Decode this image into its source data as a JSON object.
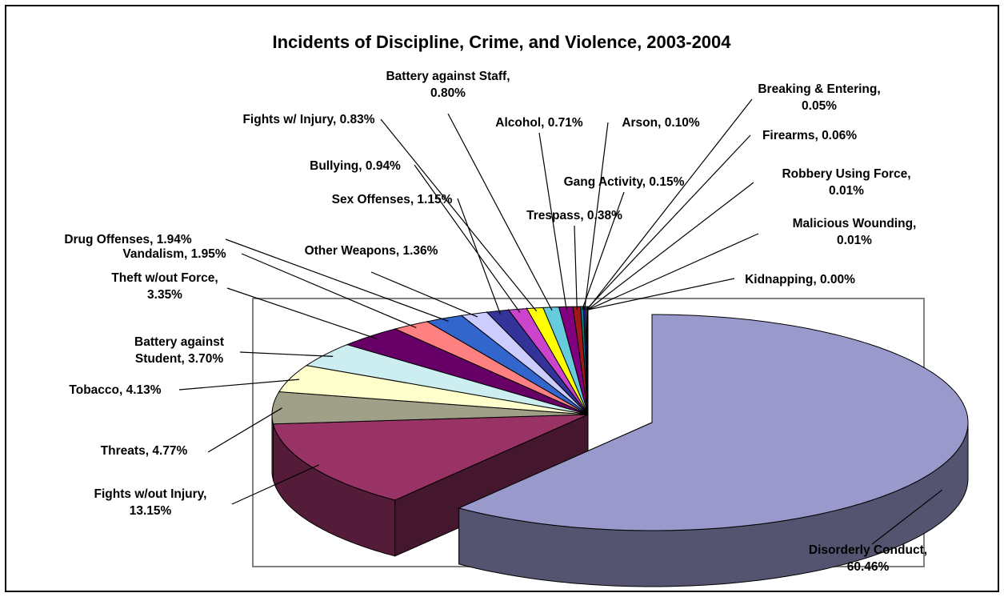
{
  "chart_data": {
    "type": "pie",
    "title": "Incidents of Discipline, Crime, and Violence, 2003-2004",
    "three_d": true,
    "exploded_slice": "Disorderly Conduct",
    "slices": [
      {
        "name": "Disorderly Conduct",
        "line1": "Disorderly Conduct,",
        "line2": "60.46%",
        "value": 60.46,
        "color": "#9999CC"
      },
      {
        "name": "Fights w/out Injury",
        "line1": "Fights w/out Injury,",
        "line2": "13.15%",
        "value": 13.15,
        "color": "#993366"
      },
      {
        "name": "Threats",
        "line1": "Threats, 4.77%",
        "line2": "",
        "value": 4.77,
        "color": "#A0A088"
      },
      {
        "name": "Tobacco",
        "line1": "Tobacco, 4.13%",
        "line2": "",
        "value": 4.13,
        "color": "#FFFFCC"
      },
      {
        "name": "Battery against Student",
        "line1": "Battery against",
        "line2": "Student, 3.70%",
        "value": 3.7,
        "color": "#CCEEF0"
      },
      {
        "name": "Theft w/out Force",
        "line1": "Theft w/out Force,",
        "line2": "3.35%",
        "value": 3.35,
        "color": "#660066"
      },
      {
        "name": "Vandalism",
        "line1": "Vandalism, 1.95%",
        "line2": "",
        "value": 1.95,
        "color": "#FF8080"
      },
      {
        "name": "Drug Offenses",
        "line1": "Drug Offenses, 1.94%",
        "line2": "",
        "value": 1.94,
        "color": "#3366CC"
      },
      {
        "name": "Other Weapons",
        "line1": "Other Weapons, 1.36%",
        "line2": "",
        "value": 1.36,
        "color": "#CCCCFF"
      },
      {
        "name": "Sex Offenses",
        "line1": "Sex Offenses, 1.15%",
        "line2": "",
        "value": 1.15,
        "color": "#333399"
      },
      {
        "name": "Bullying",
        "line1": "Bullying, 0.94%",
        "line2": "",
        "value": 0.94,
        "color": "#CC44CC"
      },
      {
        "name": "Fights w/ Injury",
        "line1": "Fights w/ Injury, 0.83%",
        "line2": "",
        "value": 0.83,
        "color": "#FFFF00"
      },
      {
        "name": "Battery against Staff",
        "line1": "Battery against Staff,",
        "line2": "0.80%",
        "value": 0.8,
        "color": "#66CCDD"
      },
      {
        "name": "Alcohol",
        "line1": "Alcohol, 0.71%",
        "line2": "",
        "value": 0.71,
        "color": "#800080"
      },
      {
        "name": "Trespass",
        "line1": "Trespass, 0.38%",
        "line2": "",
        "value": 0.38,
        "color": "#A01818"
      },
      {
        "name": "Gang Activity",
        "line1": "Gang Activity, 0.15%",
        "line2": "",
        "value": 0.15,
        "color": "#008080"
      },
      {
        "name": "Arson",
        "line1": "Arson, 0.10%",
        "line2": "",
        "value": 0.1,
        "color": "#2020C0"
      },
      {
        "name": "Firearms",
        "line1": "Firearms, 0.06%",
        "line2": "",
        "value": 0.06,
        "color": "#CCCCFF"
      },
      {
        "name": "Breaking & Entering",
        "line1": "Breaking & Entering,",
        "line2": "0.05%",
        "value": 0.05,
        "color": "#FFCC99"
      },
      {
        "name": "Robbery Using Force",
        "line1": "Robbery Using Force,",
        "line2": "0.01%",
        "value": 0.01,
        "color": "#66AA66"
      },
      {
        "name": "Malicious Wounding",
        "line1": "Malicious Wounding,",
        "line2": "0.01%",
        "value": 0.01,
        "color": "#996633"
      },
      {
        "name": "Kidnapping",
        "line1": "Kidnapping, 0.00%",
        "line2": "",
        "value": 0.0,
        "color": "#666666"
      }
    ]
  }
}
